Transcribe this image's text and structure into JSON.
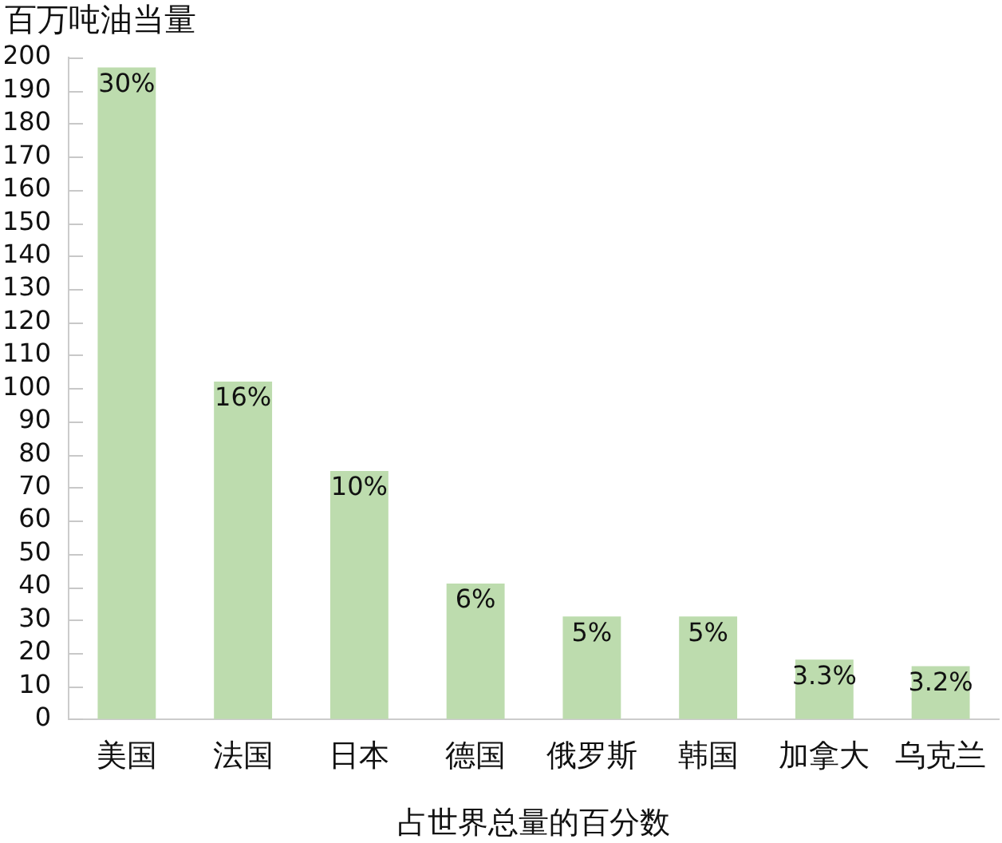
{
  "chart_data": {
    "type": "bar",
    "ylabel": "百万吨油当量",
    "xlabel": "占世界总量的百分数",
    "categories": [
      "美国",
      "法国",
      "日本",
      "德国",
      "俄罗斯",
      "韩国",
      "加拿大",
      "乌克兰"
    ],
    "values": [
      197,
      102,
      75,
      41,
      31,
      31,
      18,
      16
    ],
    "annotations": [
      {
        "text": "30%",
        "x": "美国",
        "y": 197
      },
      {
        "text": "16%",
        "x": "法国",
        "y": 102
      },
      {
        "text": "10%",
        "x": "日本",
        "y": 75
      },
      {
        "text": "6%",
        "x": "德国",
        "y": 41
      },
      {
        "text": "5%",
        "x": "俄罗斯",
        "y": 31
      },
      {
        "text": "5%",
        "x": "韩国",
        "y": 31
      },
      {
        "text": "3.3%",
        "x": "加拿大",
        "y": 18
      },
      {
        "text": "3.2%",
        "x": "乌克兰",
        "y": 16
      }
    ],
    "color": "#bddcae",
    "ylim": [
      0,
      200
    ],
    "yticks": [
      0,
      10,
      20,
      30,
      40,
      50,
      60,
      70,
      80,
      90,
      100,
      110,
      120,
      130,
      140,
      150,
      160,
      170,
      180,
      190,
      200
    ]
  }
}
